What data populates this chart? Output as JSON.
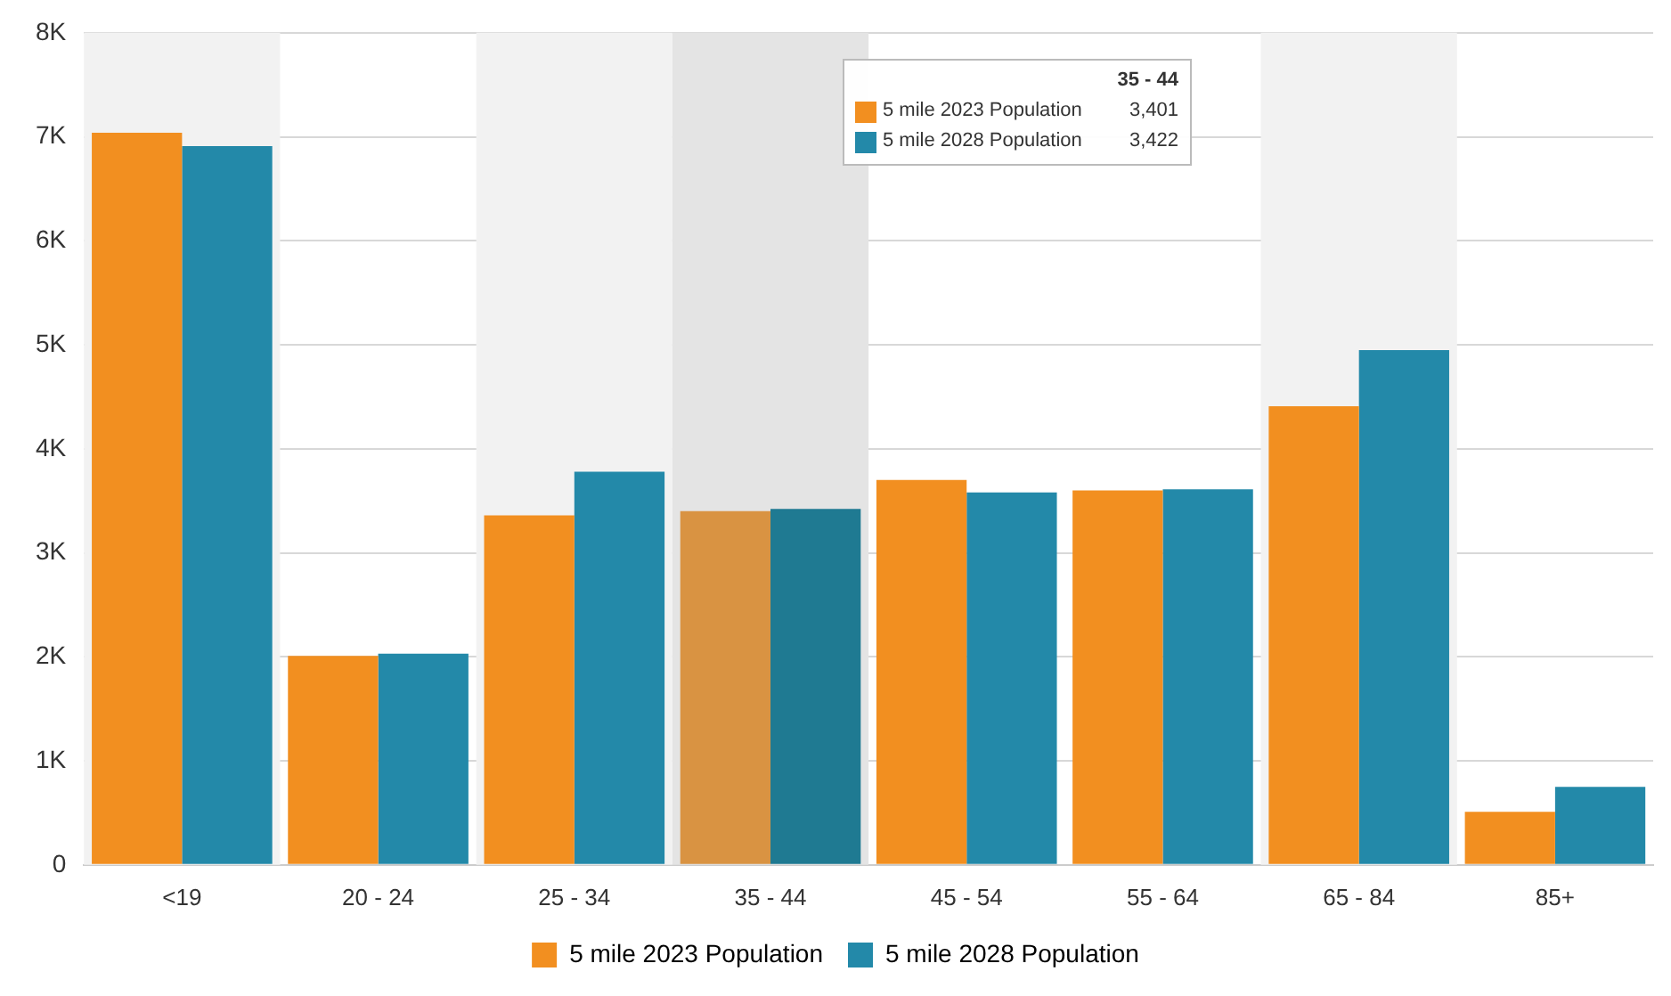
{
  "chart_data": {
    "type": "bar",
    "categories": [
      "<19",
      "20 - 24",
      "25 - 34",
      "35 - 44",
      "45 - 54",
      "55 - 64",
      "65 - 84",
      "85+"
    ],
    "series": [
      {
        "name": "5 mile 2023 Population",
        "color": "#f28f20",
        "colors": [
          "#f28f20",
          "#f28f20",
          "#f28f20",
          "#d99342",
          "#f28f20",
          "#f28f20",
          "#f28f20",
          "#f28f20"
        ],
        "values": [
          7040,
          2010,
          3360,
          3401,
          3700,
          3600,
          4410,
          510
        ]
      },
      {
        "name": "5 mile 2028 Population",
        "color": "#2389a9",
        "colors": [
          "#2389a9",
          "#2389a9",
          "#2389a9",
          "#1f7a92",
          "#2389a9",
          "#2389a9",
          "#2389a9",
          "#2389a9"
        ],
        "values": [
          6910,
          2030,
          3780,
          3422,
          3580,
          3610,
          4950,
          750
        ]
      }
    ],
    "annotations": [
      "35 - 44",
      "5 mile 2023 Population",
      "3,401",
      "5 mile 2028 Population",
      "3,422"
    ],
    "ylim": [
      0,
      8000
    ],
    "yticks": [
      {
        "value": 0,
        "label": "0"
      },
      {
        "value": 1000,
        "label": "1K"
      },
      {
        "value": 2000,
        "label": "2K"
      },
      {
        "value": 3000,
        "label": "3K"
      },
      {
        "value": 4000,
        "label": "4K"
      },
      {
        "value": 5000,
        "label": "5K"
      },
      {
        "value": 6000,
        "label": "6K"
      },
      {
        "value": 7000,
        "label": "7K"
      },
      {
        "value": 8000,
        "label": "8K"
      }
    ],
    "bands": [
      {
        "axis": "x",
        "from": "<19",
        "to": "<19",
        "color": "#f2f2f2"
      },
      {
        "axis": "x",
        "from": "25 - 34",
        "to": "25 - 34",
        "color": "#f2f2f2"
      },
      {
        "axis": "x",
        "from": "35 - 44",
        "to": "35 - 44",
        "color": "#e4e4e4"
      },
      {
        "axis": "x",
        "from": "65 - 84",
        "to": "65 - 84",
        "color": "#f2f2f2"
      }
    ],
    "grid": "y",
    "legend": "bottom"
  }
}
